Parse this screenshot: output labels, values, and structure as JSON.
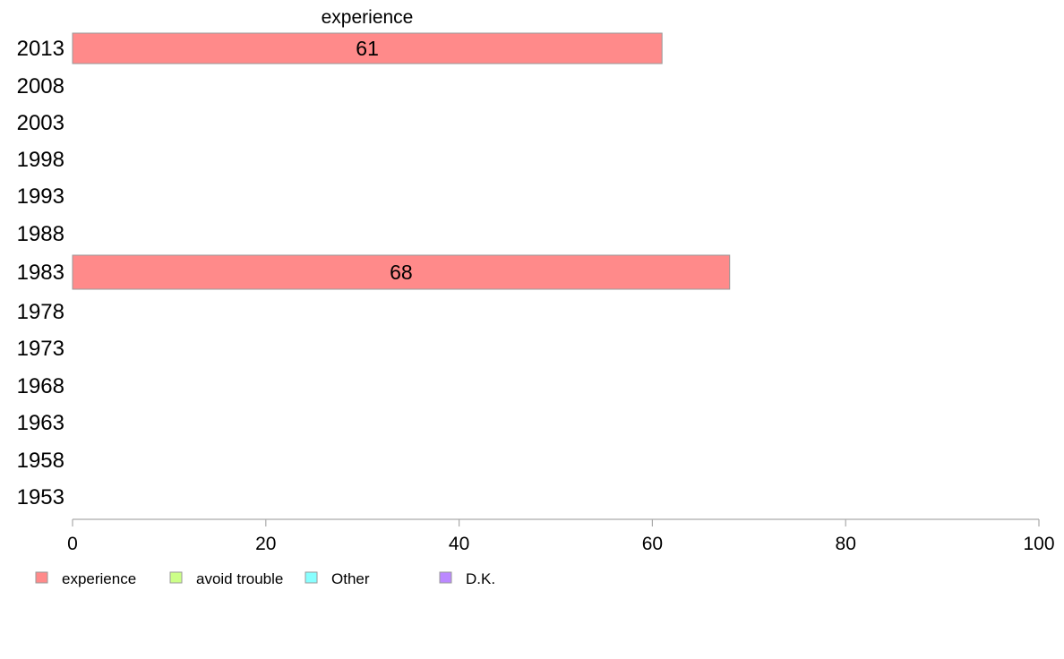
{
  "chart_data": {
    "type": "bar",
    "orientation": "horizontal",
    "categories": [
      "2013",
      "2008",
      "2003",
      "1998",
      "1993",
      "1988",
      "1983",
      "1978",
      "1973",
      "1968",
      "1963",
      "1958",
      "1953"
    ],
    "series": [
      {
        "name": "experience",
        "color": "#ff8a8a",
        "values": [
          61,
          null,
          null,
          null,
          null,
          null,
          68,
          null,
          null,
          null,
          null,
          null,
          null
        ]
      },
      {
        "name": "avoid trouble",
        "color": "#ccff88",
        "values": [
          null,
          null,
          null,
          null,
          null,
          null,
          null,
          null,
          null,
          null,
          null,
          null,
          null
        ]
      },
      {
        "name": "Other",
        "color": "#88ffff",
        "values": [
          null,
          null,
          null,
          null,
          null,
          null,
          null,
          null,
          null,
          null,
          null,
          null,
          null
        ]
      },
      {
        "name": "D.K.",
        "color": "#bb88ff",
        "values": [
          null,
          null,
          null,
          null,
          null,
          null,
          null,
          null,
          null,
          null,
          null,
          null,
          null
        ]
      }
    ],
    "top_label": "experience",
    "xlim": [
      0,
      100
    ],
    "xticks": [
      0,
      20,
      40,
      60,
      80,
      100
    ],
    "grid": false,
    "legend": "bottom-left"
  }
}
